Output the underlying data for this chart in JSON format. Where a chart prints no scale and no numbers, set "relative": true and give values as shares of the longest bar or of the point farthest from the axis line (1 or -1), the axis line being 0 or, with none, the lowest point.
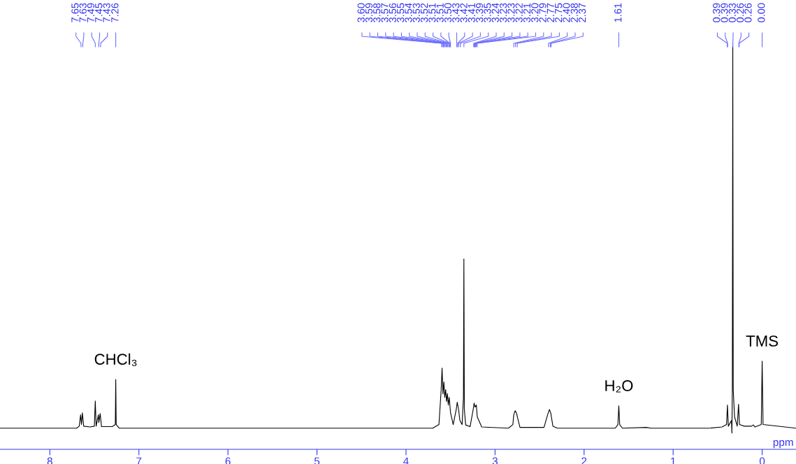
{
  "chart_data": {
    "type": "line",
    "relative": true,
    "xlabel": "ppm",
    "xlim": [
      8.56,
      -0.38
    ],
    "xticks": [
      0,
      1,
      2,
      3,
      4,
      5,
      6,
      7,
      8
    ],
    "series": [
      {
        "color": "#000000",
        "x": [
          8.56,
          7.7,
          7.67,
          7.655,
          7.645,
          7.635,
          7.62,
          7.55,
          7.5,
          7.49,
          7.48,
          7.455,
          7.45,
          7.435,
          7.42,
          7.3,
          7.265,
          7.26,
          7.255,
          7.22,
          3.7,
          3.63,
          3.605,
          3.595,
          3.585,
          3.575,
          3.565,
          3.555,
          3.545,
          3.535,
          3.525,
          3.515,
          3.5,
          3.47,
          3.435,
          3.425,
          3.41,
          3.395,
          3.37,
          3.355,
          3.35,
          3.345,
          3.33,
          3.28,
          3.245,
          3.235,
          3.225,
          3.21,
          3.2,
          3.15,
          2.85,
          2.8,
          2.79,
          2.775,
          2.76,
          2.745,
          2.72,
          2.45,
          2.41,
          2.39,
          2.375,
          2.35,
          2.3,
          1.65,
          1.62,
          1.61,
          1.6,
          1.57,
          1.3,
          1.25,
          0.6,
          0.45,
          0.4,
          0.39,
          0.38,
          0.345,
          0.34,
          0.335,
          0.33,
          0.325,
          0.31,
          0.28,
          0.265,
          0.255,
          0.2,
          0.12,
          0.1,
          0.08,
          0.01,
          0.0,
          -0.01,
          -0.38
        ],
        "values": [
          0.052,
          0.052,
          0.057,
          0.085,
          0.061,
          0.09,
          0.057,
          0.055,
          0.057,
          0.119,
          0.057,
          0.085,
          0.066,
          0.088,
          0.056,
          0.056,
          0.061,
          0.172,
          0.061,
          0.052,
          0.052,
          0.061,
          0.147,
          0.2,
          0.137,
          0.166,
          0.128,
          0.147,
          0.118,
          0.137,
          0.109,
          0.128,
          0.09,
          0.061,
          0.099,
          0.116,
          0.099,
          0.071,
          0.061,
          0.128,
          0.469,
          0.099,
          0.06,
          0.056,
          0.099,
          0.114,
          0.104,
          0.109,
          0.08,
          0.055,
          0.052,
          0.061,
          0.085,
          0.095,
          0.09,
          0.076,
          0.054,
          0.054,
          0.085,
          0.098,
          0.09,
          0.057,
          0.052,
          0.052,
          0.061,
          0.107,
          0.061,
          0.052,
          0.054,
          0.052,
          0.052,
          0.055,
          0.061,
          0.109,
          0.057,
          0.071,
          0.04,
          0.147,
          1,
          0.147,
          0.08,
          0.057,
          0.111,
          0.061,
          0.057,
          0.057,
          0.06,
          0.055,
          0.061,
          0.217,
          0.061,
          0.052
        ]
      }
    ],
    "annotations": [
      {
        "text": "CHCl₃",
        "x": 7.26,
        "y": 0.172
      },
      {
        "text": "H₂O",
        "x": 1.61,
        "y": 0.107
      },
      {
        "text": "TMS",
        "x": 0.0,
        "y": 0.217
      },
      {
        "text": "7.65",
        "x": 7.65
      },
      {
        "text": "7.63",
        "x": 7.63
      },
      {
        "text": "7.49",
        "x": 7.49
      },
      {
        "text": "7.45",
        "x": 7.45
      },
      {
        "text": "7.43",
        "x": 7.43
      },
      {
        "text": "7.26",
        "x": 7.26
      },
      {
        "text": "3.60",
        "x": 3.6
      },
      {
        "text": "3.59",
        "x": 3.59
      },
      {
        "text": "3.58",
        "x": 3.58
      },
      {
        "text": "3.57",
        "x": 3.57
      },
      {
        "text": "3.56",
        "x": 3.56
      },
      {
        "text": "3.55",
        "x": 3.55
      },
      {
        "text": "3.54",
        "x": 3.54
      },
      {
        "text": "3.53",
        "x": 3.53
      },
      {
        "text": "3.52",
        "x": 3.52
      },
      {
        "text": "3.51",
        "x": 3.51
      },
      {
        "text": "3.51",
        "x": 3.505
      },
      {
        "text": "3.50",
        "x": 3.5
      },
      {
        "text": "3.43",
        "x": 3.43
      },
      {
        "text": "3.42",
        "x": 3.42
      },
      {
        "text": "3.41",
        "x": 3.41
      },
      {
        "text": "3.39",
        "x": 3.39
      },
      {
        "text": "3.35",
        "x": 3.35
      },
      {
        "text": "3.24",
        "x": 3.24
      },
      {
        "text": "3.23",
        "x": 3.233
      },
      {
        "text": "3.23",
        "x": 3.227
      },
      {
        "text": "3.22",
        "x": 3.22
      },
      {
        "text": "3.21",
        "x": 3.21
      },
      {
        "text": "3.20",
        "x": 3.2
      },
      {
        "text": "2.79",
        "x": 2.79
      },
      {
        "text": "2.77",
        "x": 2.77
      },
      {
        "text": "2.75",
        "x": 2.75
      },
      {
        "text": "2.40",
        "x": 2.4
      },
      {
        "text": "2.38",
        "x": 2.38
      },
      {
        "text": "2.37",
        "x": 2.37
      },
      {
        "text": "1.61",
        "x": 1.61
      },
      {
        "text": "0.39",
        "x": 0.392
      },
      {
        "text": "0.39",
        "x": 0.388
      },
      {
        "text": "0.33",
        "x": 0.33
      },
      {
        "text": "0.26",
        "x": 0.262
      },
      {
        "text": "0.26",
        "x": 0.258
      },
      {
        "text": "0.00",
        "x": 0.0
      }
    ]
  }
}
